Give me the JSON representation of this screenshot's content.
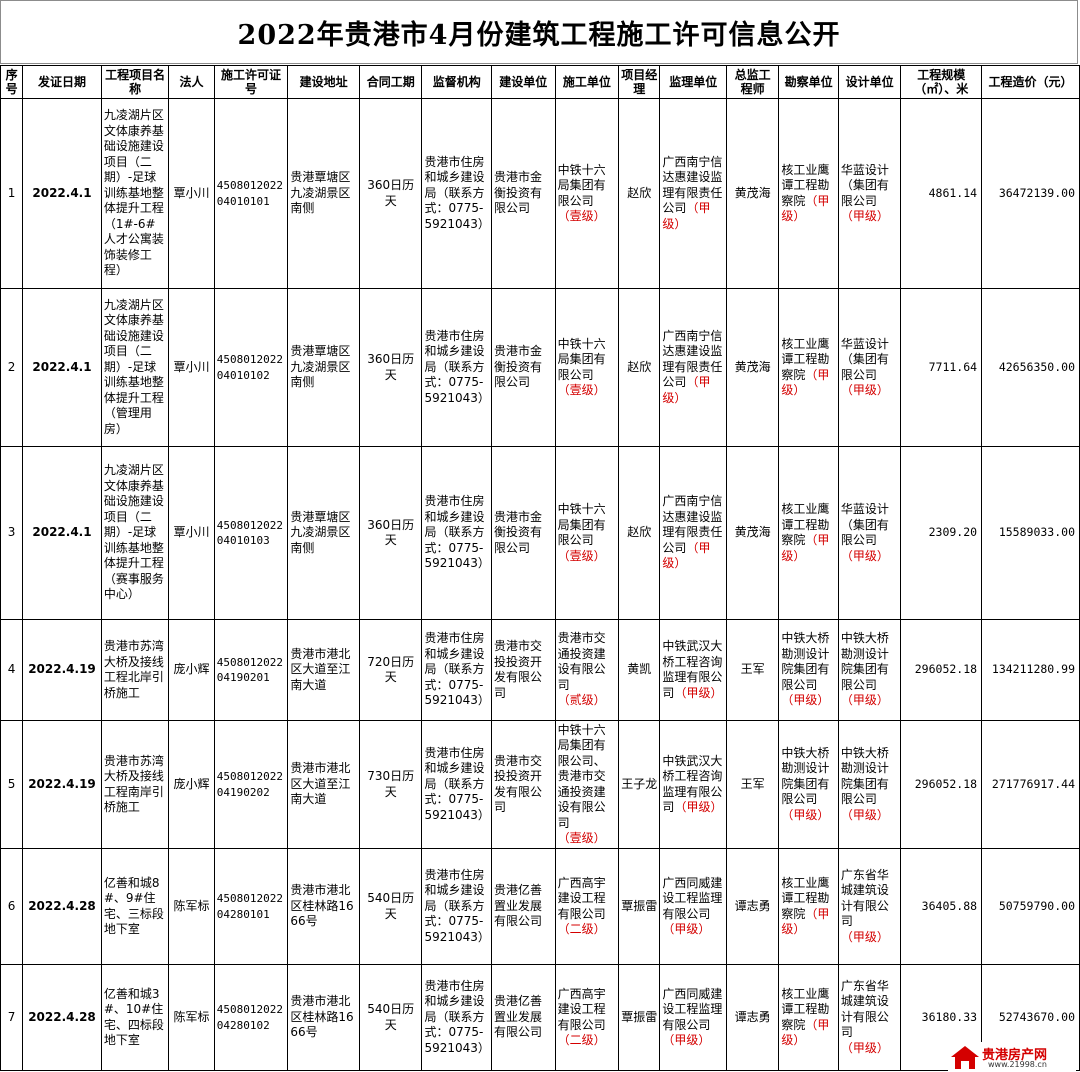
{
  "title": "2022年贵港市4月份建筑工程施工许可信息公开",
  "headers": [
    "序号",
    "发证日期",
    "工程项目名称",
    "法人",
    "施工许可证号",
    "建设地址",
    "合同工期",
    "监督机构",
    "建设单位",
    "施工单位",
    "项目经理",
    "监理单位",
    "总监工程师",
    "勘察单位",
    "设计单位",
    "工程规模（㎡）、米",
    "工程造价（元）"
  ],
  "rows": [
    {
      "no": "1",
      "date": "2022.4.1",
      "project": "九凌湖片区文体康养基础设施建设项目（二期）-足球训练基地整体提升工程（1#-6#人才公寓装饰装修工程）",
      "person": "覃小川",
      "permit": "450801202204010101",
      "address": "贵港覃塘区九凌湖景区南侧",
      "period": "360日历天",
      "supervisor": "贵港市住房和城乡建设局（联系方式：0775-5921043）",
      "builder": "贵港市金衡投资有限公司",
      "contractor": "中铁十六局集团有限公司",
      "contractor_grade": "（壹级）",
      "manager": "赵欣",
      "consultant": "广西南宁信达惠建设监理有限责任公司",
      "consultant_grade": "（甲级）",
      "chief": "黄茂海",
      "survey": "核工业鹰谭工程勘察院",
      "survey_grade": "（甲级）",
      "design": "华蓝设计（集团有限公司",
      "design_grade": "（甲级）",
      "scale": "4861.14",
      "cost": "36472139.00"
    },
    {
      "no": "2",
      "date": "2022.4.1",
      "project": "九凌湖片区文体康养基础设施建设项目（二期）-足球训练基地整体提升工程（管理用房）",
      "person": "覃小川",
      "permit": "450801202204010102",
      "address": "贵港覃塘区九凌湖景区南侧",
      "period": "360日历天",
      "supervisor": "贵港市住房和城乡建设局（联系方式：0775-5921043）",
      "builder": "贵港市金衡投资有限公司",
      "contractor": "中铁十六局集团有限公司",
      "contractor_grade": "（壹级）",
      "manager": "赵欣",
      "consultant": "广西南宁信达惠建设监理有限责任公司",
      "consultant_grade": "（甲级）",
      "chief": "黄茂海",
      "survey": "核工业鹰谭工程勘察院",
      "survey_grade": "（甲级）",
      "design": "华蓝设计（集团有限公司",
      "design_grade": "（甲级）",
      "scale": "7711.64",
      "cost": "42656350.00"
    },
    {
      "no": "3",
      "date": "2022.4.1",
      "project": "九凌湖片区文体康养基础设施建设项目（二期）-足球训练基地整体提升工程（赛事服务中心）",
      "person": "覃小川",
      "permit": "450801202204010103",
      "address": "贵港覃塘区九凌湖景区南侧",
      "period": "360日历天",
      "supervisor": "贵港市住房和城乡建设局（联系方式：0775-5921043）",
      "builder": "贵港市金衡投资有限公司",
      "contractor": "中铁十六局集团有限公司",
      "contractor_grade": "（壹级）",
      "manager": "赵欣",
      "consultant": "广西南宁信达惠建设监理有限责任公司",
      "consultant_grade": "（甲级）",
      "chief": "黄茂海",
      "survey": "核工业鹰谭工程勘察院",
      "survey_grade": "（甲级）",
      "design": "华蓝设计（集团有限公司",
      "design_grade": "（甲级）",
      "scale": "2309.20",
      "cost": "15589033.00"
    },
    {
      "no": "4",
      "date": "2022.4.19",
      "project": "贵港市苏湾大桥及接线工程北岸引桥施工",
      "person": "庞小辉",
      "permit": "450801202204190201",
      "address": "贵港市港北区大道至江南大道",
      "period": "720日历天",
      "supervisor": "贵港市住房和城乡建设局（联系方式：0775-5921043）",
      "builder": "贵港市交投投资开发有限公司",
      "contractor": "贵港市交通投资建设有限公司",
      "contractor_grade": "（贰级）",
      "manager": "黄凯",
      "consultant": "中铁武汉大桥工程咨询监理有限公司",
      "consultant_grade": "（甲级）",
      "chief": "王军",
      "survey": "中铁大桥勘测设计院集团有限公司",
      "survey_grade": "（甲级）",
      "design": "中铁大桥勘测设计院集团有限公司",
      "design_grade": "（甲级）",
      "scale": "296052.18",
      "cost": "134211280.99"
    },
    {
      "no": "5",
      "date": "2022.4.19",
      "project": "贵港市苏湾大桥及接线工程南岸引桥施工",
      "person": "庞小辉",
      "permit": "450801202204190202",
      "address": "贵港市港北区大道至江南大道",
      "period": "730日历天",
      "supervisor": "贵港市住房和城乡建设局（联系方式：0775-5921043）",
      "builder": "贵港市交投投资开发有限公司",
      "contractor": "中铁十六局集团有限公司、贵港市交通投资建设有限公司",
      "contractor_grade": "（壹级）",
      "manager": "王子龙",
      "consultant": "中铁武汉大桥工程咨询监理有限公司",
      "consultant_grade": "（甲级）",
      "chief": "王军",
      "survey": "中铁大桥勘测设计院集团有限公司",
      "survey_grade": "（甲级）",
      "design": "中铁大桥勘测设计院集团有限公司",
      "design_grade": "（甲级）",
      "scale": "296052.18",
      "cost": "271776917.44"
    },
    {
      "no": "6",
      "date": "2022.4.28",
      "project": "亿善和城8#、9#住宅、三标段地下室",
      "person": "陈军标",
      "permit": "450801202204280101",
      "address": "贵港市港北区桂林路1666号",
      "period": "540日历天",
      "supervisor": "贵港市住房和城乡建设局（联系方式：0775-5921043）",
      "builder": "贵港亿善置业发展有限公司",
      "contractor": "广西高宇建设工程有限公司",
      "contractor_grade": "（二级）",
      "manager": "覃振雷",
      "consultant": "广西同威建设工程监理有限公司",
      "consultant_grade": "（甲级）",
      "chief": "谭志勇",
      "survey": "核工业鹰谭工程勘察院",
      "survey_grade": "（甲级）",
      "design": "广东省华城建筑设计有限公司",
      "design_grade": "（甲级）",
      "scale": "36405.88",
      "cost": "50759790.00"
    },
    {
      "no": "7",
      "date": "2022.4.28",
      "project": "亿善和城3#、10#住宅、四标段地下室",
      "person": "陈军标",
      "permit": "450801202204280102",
      "address": "贵港市港北区桂林路1666号",
      "period": "540日历天",
      "supervisor": "贵港市住房和城乡建设局（联系方式：0775-5921043）",
      "builder": "贵港亿善置业发展有限公司",
      "contractor": "广西高宇建设工程有限公司",
      "contractor_grade": "（二级）",
      "manager": "覃振雷",
      "consultant": "广西同威建设工程监理有限公司",
      "consultant_grade": "（甲级）",
      "chief": "谭志勇",
      "survey": "核工业鹰谭工程勘察院",
      "survey_grade": "（甲级）",
      "design": "广东省华城建筑设计有限公司",
      "design_grade": "（甲级）",
      "scale": "36180.33",
      "cost": "52743670.00"
    }
  ],
  "logo": {
    "text": "贵港房产网",
    "url": "www.21998.cn",
    "color": "#d40000"
  }
}
